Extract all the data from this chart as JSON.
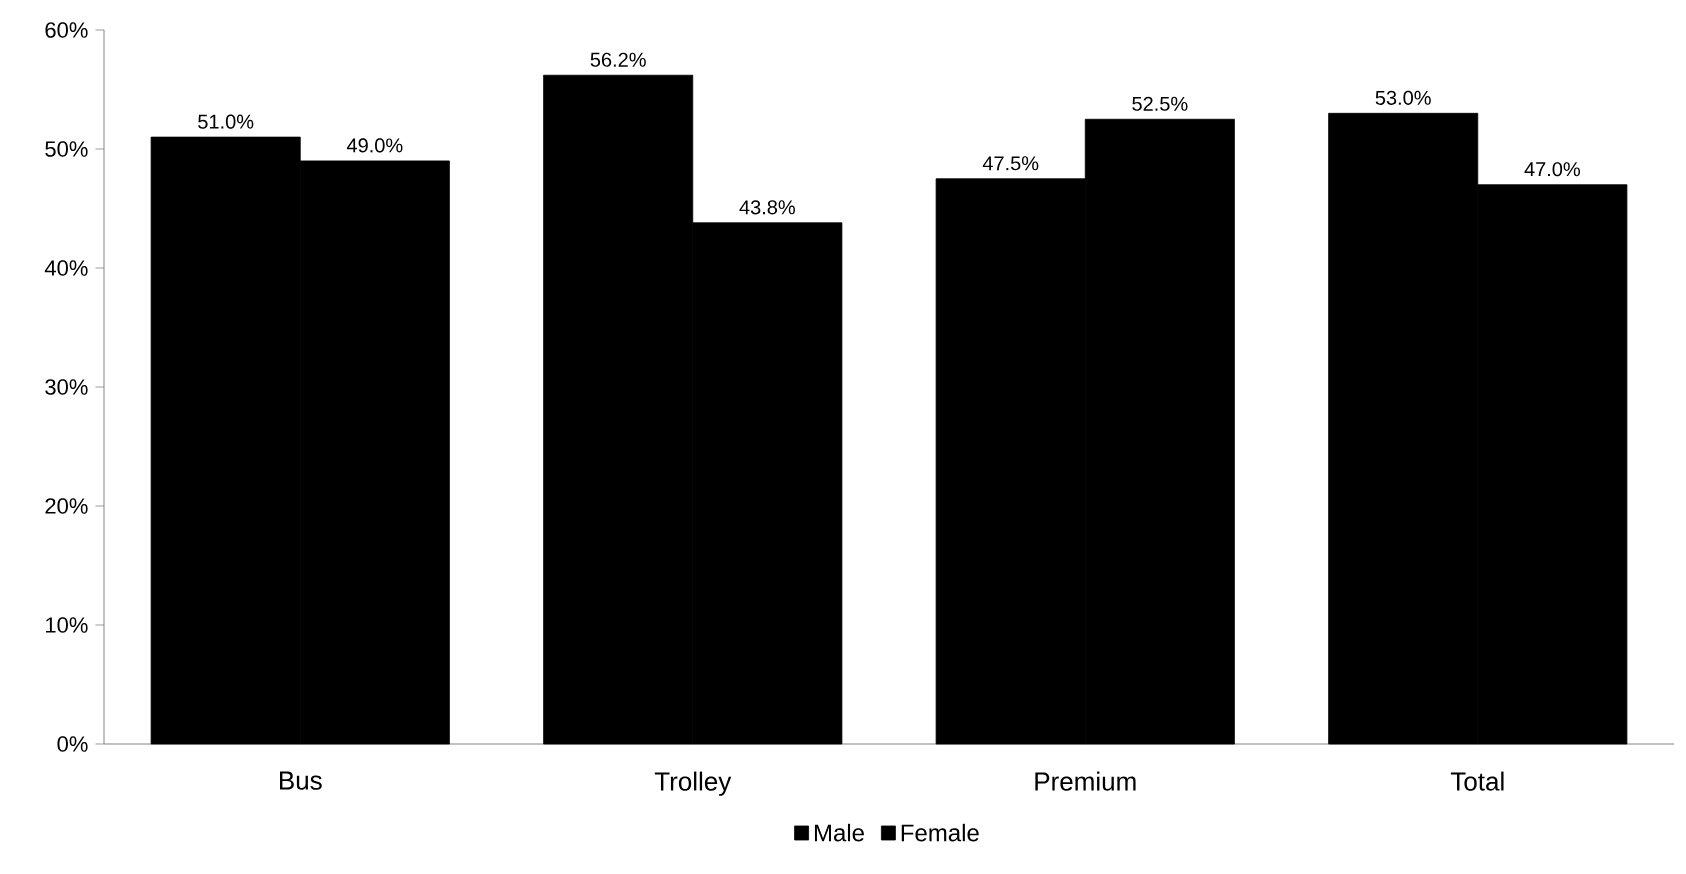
{
  "chart_data": {
    "type": "bar",
    "categories": [
      "Bus",
      "Trolley",
      "Premium",
      "Total"
    ],
    "series": [
      {
        "name": "Male",
        "color": "#000000",
        "values": [
          51.0,
          56.2,
          47.5,
          53.0
        ],
        "value_labels": [
          "51.0%",
          "56.2%",
          "47.5%",
          "53.0%"
        ]
      },
      {
        "name": "Female",
        "color": "#000000",
        "values": [
          49.0,
          43.8,
          52.5,
          47.0
        ],
        "value_labels": [
          "49.0%",
          "43.8%",
          "52.5%",
          "47.0%"
        ]
      }
    ],
    "ylim": [
      0,
      60
    ],
    "yticks": [
      {
        "value": 0,
        "label": "0%"
      },
      {
        "value": 10,
        "label": "10%"
      },
      {
        "value": 20,
        "label": "20%"
      },
      {
        "value": 30,
        "label": "30%"
      },
      {
        "value": 40,
        "label": "40%"
      },
      {
        "value": 50,
        "label": "50%"
      },
      {
        "value": 60,
        "label": "60%"
      }
    ],
    "grid": false,
    "legend": "bottom"
  }
}
